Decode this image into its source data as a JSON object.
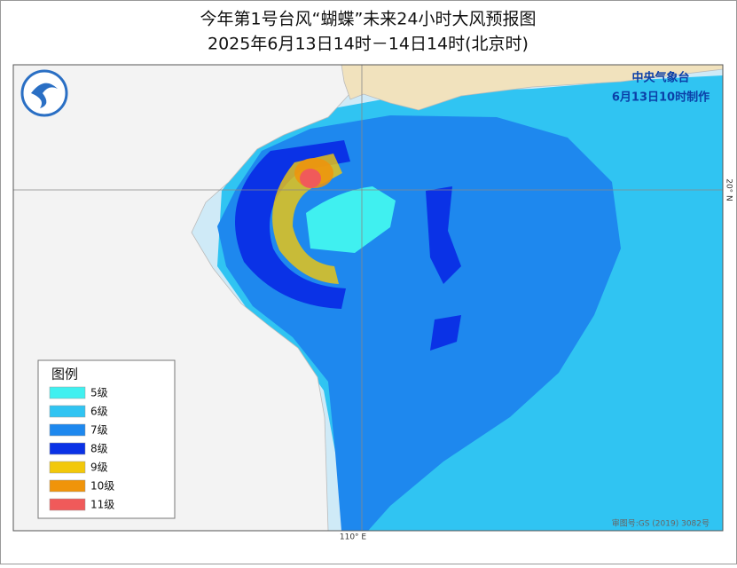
{
  "header": {
    "title": "今年第1号台风“蝴蝶”未来24小时大风预报图",
    "subtitle": "2025年6月13日14时－14日14时(北京时)"
  },
  "map": {
    "agency": "中央气象台",
    "issued": "6月13日10时制作",
    "lat_label": "20° N",
    "lon_label": "110° E",
    "approval": "审图号:GS (2019) 3082号"
  },
  "legend": {
    "title": "图例",
    "items": [
      {
        "label": "5级",
        "color": "#40f0f0"
      },
      {
        "label": "6级",
        "color": "#30c4f2"
      },
      {
        "label": "7级",
        "color": "#1e88ee"
      },
      {
        "label": "8级",
        "color": "#0a32e6"
      },
      {
        "label": "9级",
        "color": "#f2c80a"
      },
      {
        "label": "10级",
        "color": "#f0940a"
      },
      {
        "label": "11级",
        "color": "#f05a5a"
      }
    ]
  }
}
